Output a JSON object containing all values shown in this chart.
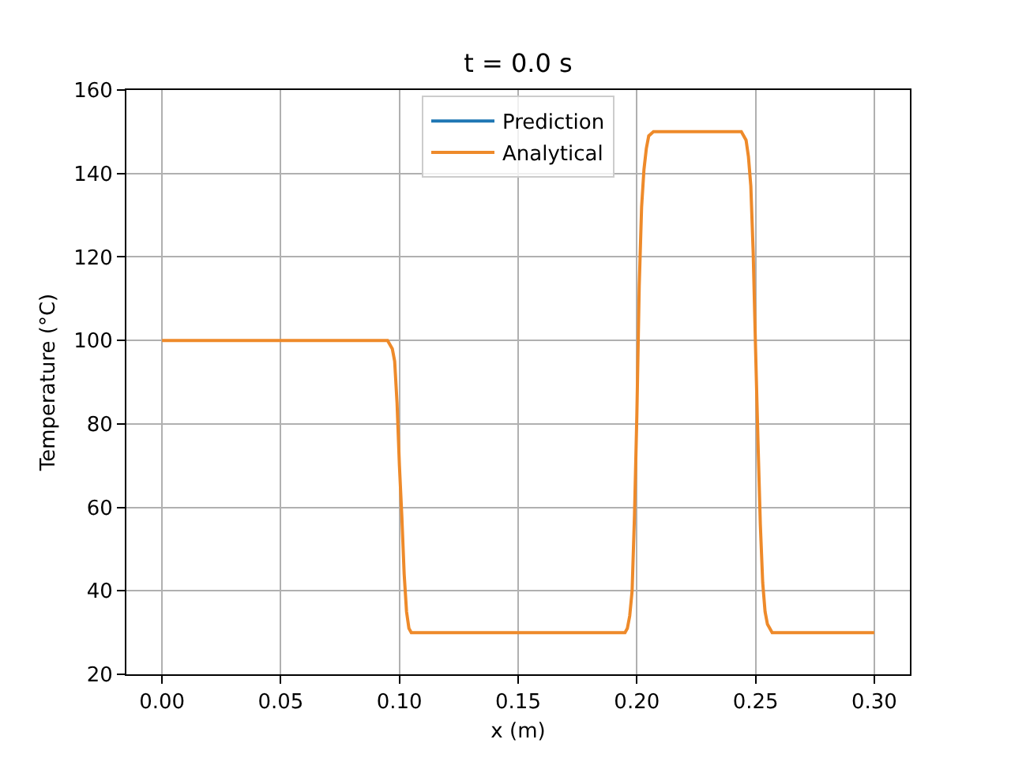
{
  "chart_data": {
    "type": "line",
    "title": "t = 0.0 s",
    "xlabel": "x (m)",
    "ylabel": "Temperature (°C)",
    "x": [
      0,
      0.095,
      0.097,
      0.098,
      0.099,
      0.1,
      0.101,
      0.102,
      0.103,
      0.104,
      0.105,
      0.195,
      0.196,
      0.197,
      0.198,
      0.199,
      0.2,
      0.201,
      0.202,
      0.203,
      0.204,
      0.205,
      0.207,
      0.244,
      0.246,
      0.247,
      0.248,
      0.249,
      0.25,
      0.251,
      0.252,
      0.253,
      0.254,
      0.255,
      0.257,
      0.3
    ],
    "series": [
      {
        "name": "Prediction",
        "color": "#1f77b4",
        "values": [
          null,
          null,
          null,
          null,
          null,
          null,
          null,
          null,
          null,
          null,
          null,
          null,
          null,
          null,
          null,
          null,
          null,
          null,
          null,
          null,
          null,
          null,
          null,
          null,
          null,
          null,
          null,
          null,
          null,
          null,
          null,
          null,
          null,
          null,
          null,
          null
        ]
      },
      {
        "name": "Analytical",
        "color": "#ee8a2a",
        "values": [
          100,
          100,
          98,
          95,
          85,
          70,
          58,
          44,
          35,
          31,
          30,
          30,
          31,
          34,
          40,
          58,
          82,
          113,
          132,
          141,
          146,
          149,
          150,
          150,
          148,
          144,
          137,
          121,
          98,
          76,
          56,
          42,
          35,
          32,
          30,
          30
        ]
      }
    ],
    "xlim": [
      -0.015,
      0.315
    ],
    "xticks": [
      {
        "value": 0,
        "label": "0.00"
      },
      {
        "value": 0.05,
        "label": "0.05"
      },
      {
        "value": 0.1,
        "label": "0.10"
      },
      {
        "value": 0.15,
        "label": "0.15"
      },
      {
        "value": 0.2,
        "label": "0.20"
      },
      {
        "value": 0.25,
        "label": "0.25"
      },
      {
        "value": 0.3,
        "label": "0.30"
      }
    ],
    "ylim": [
      20,
      160
    ],
    "yticks": [
      20,
      40,
      60,
      80,
      100,
      120,
      140,
      160
    ],
    "grid": true,
    "legend": "top"
  }
}
